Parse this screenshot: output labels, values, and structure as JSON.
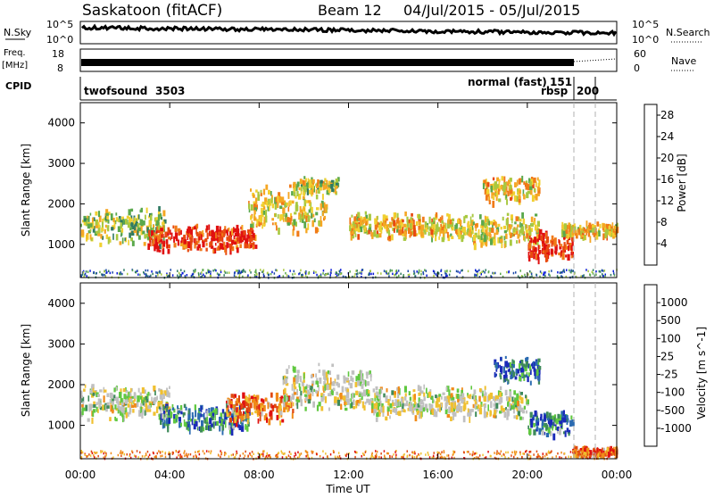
{
  "header": {
    "station": "Saskatoon (fitACF)",
    "beam": "Beam 12",
    "date_range": "04/Jul/2015 - 05/Jul/2015"
  },
  "top_panels": {
    "nsky": {
      "label": "N.Sky",
      "tick_top": "10^5",
      "tick_bottom": "10^0"
    },
    "nsearch": {
      "label": "N.Search",
      "tick_top": "10^5",
      "tick_bottom": "10^0"
    },
    "freq": {
      "label_line1": "Freq.",
      "label_line2": "[MHz]",
      "tick_top": "18",
      "tick_bottom": "8"
    },
    "nave": {
      "label": "Nave",
      "tick_top": "60",
      "tick_bottom": "0"
    },
    "cpid": {
      "label": "CPID",
      "segments": [
        {
          "name": "twofsound",
          "value": "3503",
          "start_hour": 0
        },
        {
          "name": "normal (fast)",
          "value": "151",
          "start_hour": 21.7
        },
        {
          "name": "rbsp",
          "value": "200",
          "start_hour": 22.9
        }
      ]
    }
  },
  "chart_data": [
    {
      "type": "heatmap",
      "parameter": "Power",
      "ylabel": "Slant Range [km]",
      "ylim": [
        180,
        4500
      ],
      "yticks": [
        "1000",
        "2000",
        "3000",
        "4000"
      ],
      "xlim_hours": [
        0,
        24
      ],
      "colorbar": {
        "label": "Power [dB]",
        "ticks": [
          "4",
          "8",
          "12",
          "16",
          "20",
          "24",
          "28"
        ],
        "colors": [
          "#0a1bd8",
          "#1c4aa8",
          "#2f7a62",
          "#5aa84c",
          "#a8c840",
          "#f0d030",
          "#f5a623",
          "#f07a18",
          "#e84a10",
          "#e01010"
        ]
      },
      "echo_bands": [
        {
          "t0": 0.0,
          "t1": 3.8,
          "range_center": 1500,
          "range_width": 700,
          "level": 0.45
        },
        {
          "t0": 3.0,
          "t1": 7.8,
          "range_center": 1200,
          "range_width": 500,
          "level": 0.9
        },
        {
          "t0": 7.5,
          "t1": 11.0,
          "range_center": 1900,
          "range_width": 900,
          "level": 0.55
        },
        {
          "t0": 9.5,
          "t1": 11.5,
          "range_center": 2500,
          "range_width": 300,
          "level": 0.5
        },
        {
          "t0": 12.0,
          "t1": 16.5,
          "range_center": 1500,
          "range_width": 500,
          "level": 0.6
        },
        {
          "t0": 16.5,
          "t1": 20.5,
          "range_center": 1400,
          "range_width": 600,
          "level": 0.55
        },
        {
          "t0": 18.0,
          "t1": 20.5,
          "range_center": 2400,
          "range_width": 500,
          "level": 0.6
        },
        {
          "t0": 20.0,
          "t1": 22.0,
          "range_center": 1000,
          "range_width": 600,
          "level": 0.95
        },
        {
          "t0": 21.5,
          "t1": 24.0,
          "range_center": 1400,
          "range_width": 300,
          "level": 0.6
        }
      ]
    },
    {
      "type": "heatmap",
      "parameter": "Velocity",
      "ylabel": "Slant Range [km]",
      "xlabel": "Time UT",
      "ylim": [
        180,
        4500
      ],
      "yticks": [
        "1000",
        "2000",
        "3000",
        "4000"
      ],
      "xlim_hours": [
        0,
        24
      ],
      "xticks": [
        "00:00",
        "04:00",
        "08:00",
        "12:00",
        "16:00",
        "20:00",
        "00:00"
      ],
      "colorbar": {
        "label": "Velocity [m s^-1]",
        "ticks": [
          "1000",
          "500",
          "100",
          "25",
          "-25",
          "-100",
          "-500",
          "-1000"
        ],
        "colors": [
          "#1a2ab8",
          "#2a6ab0",
          "#3e8a5a",
          "#60c840",
          "#c0c0c0",
          "#c0c0c0",
          "#f0c030",
          "#f08a18",
          "#e04a10",
          "#e01010"
        ]
      },
      "echo_bands": [
        {
          "t0": 0.0,
          "t1": 4.0,
          "range_center": 1600,
          "range_width": 700,
          "level": 0.5
        },
        {
          "t0": 3.5,
          "t1": 7.5,
          "range_center": 1250,
          "range_width": 500,
          "level": 0.2
        },
        {
          "t0": 6.5,
          "t1": 9.5,
          "range_center": 1500,
          "range_width": 600,
          "level": 0.8
        },
        {
          "t0": 9.0,
          "t1": 13.0,
          "range_center": 2000,
          "range_width": 900,
          "level": 0.5
        },
        {
          "t0": 13.0,
          "t1": 20.0,
          "range_center": 1600,
          "range_width": 600,
          "level": 0.5
        },
        {
          "t0": 18.5,
          "t1": 20.5,
          "range_center": 2400,
          "range_width": 500,
          "level": 0.15
        },
        {
          "t0": 20.0,
          "t1": 22.0,
          "range_center": 1100,
          "range_width": 500,
          "level": 0.2
        },
        {
          "t0": 22.0,
          "t1": 24.0,
          "range_center": 400,
          "range_width": 200,
          "level": 0.8
        }
      ]
    }
  ],
  "time_axis": {
    "label": "Time UT"
  }
}
